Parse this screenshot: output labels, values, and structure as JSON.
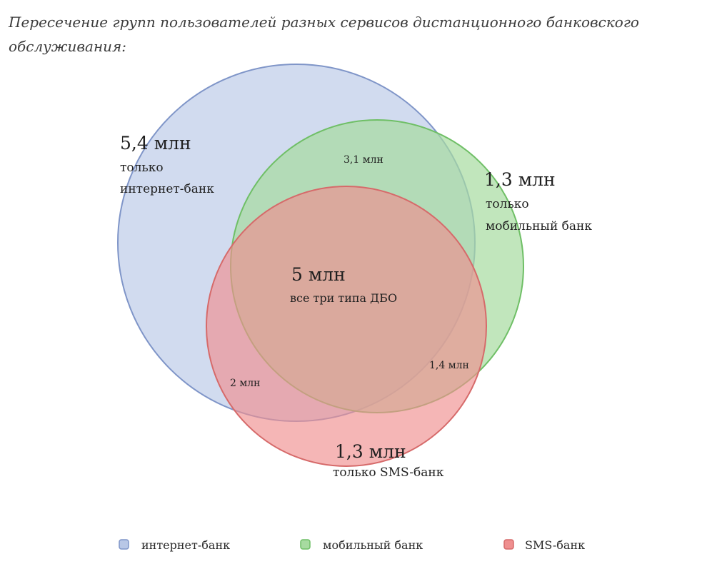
{
  "title": "Пересечение групп пользователей разных сервисов дистанционного банковского обслуживания:",
  "sets": [
    {
      "name": "интернет-банк",
      "color": "#b8c7e6",
      "stroke": "#7f95c8"
    },
    {
      "name": "мобильный банк",
      "color": "#a7dba0",
      "stroke": "#6fbf66"
    },
    {
      "name": "SMS-банк",
      "color": "#ef8f8f",
      "stroke": "#d66a6a"
    }
  ],
  "regions": {
    "internet_only": {
      "value": "5,4 млн",
      "line1": "только",
      "line2": "интернет-банк"
    },
    "mobile_only": {
      "value": "1,3 млн",
      "line1": "только",
      "line2": "мобильный банк"
    },
    "sms_only": {
      "value": "1,3 млн",
      "line1": "только SMS-банк"
    },
    "internet_mobile": {
      "value": "3,1 млн"
    },
    "internet_sms": {
      "value": "2 млн"
    },
    "mobile_sms": {
      "value": "1,4 млн"
    },
    "all_three": {
      "value": "5 млн",
      "line1": "все три типа ДБО"
    }
  },
  "legend": [
    {
      "label": "интернет-банк",
      "color": "#b8c7e6",
      "stroke": "#7f95c8"
    },
    {
      "label": "мобильный банк",
      "color": "#a7dba0",
      "stroke": "#6fbf66"
    },
    {
      "label": "SMS-банк",
      "color": "#ef8f8f",
      "stroke": "#d66a6a"
    }
  ]
}
